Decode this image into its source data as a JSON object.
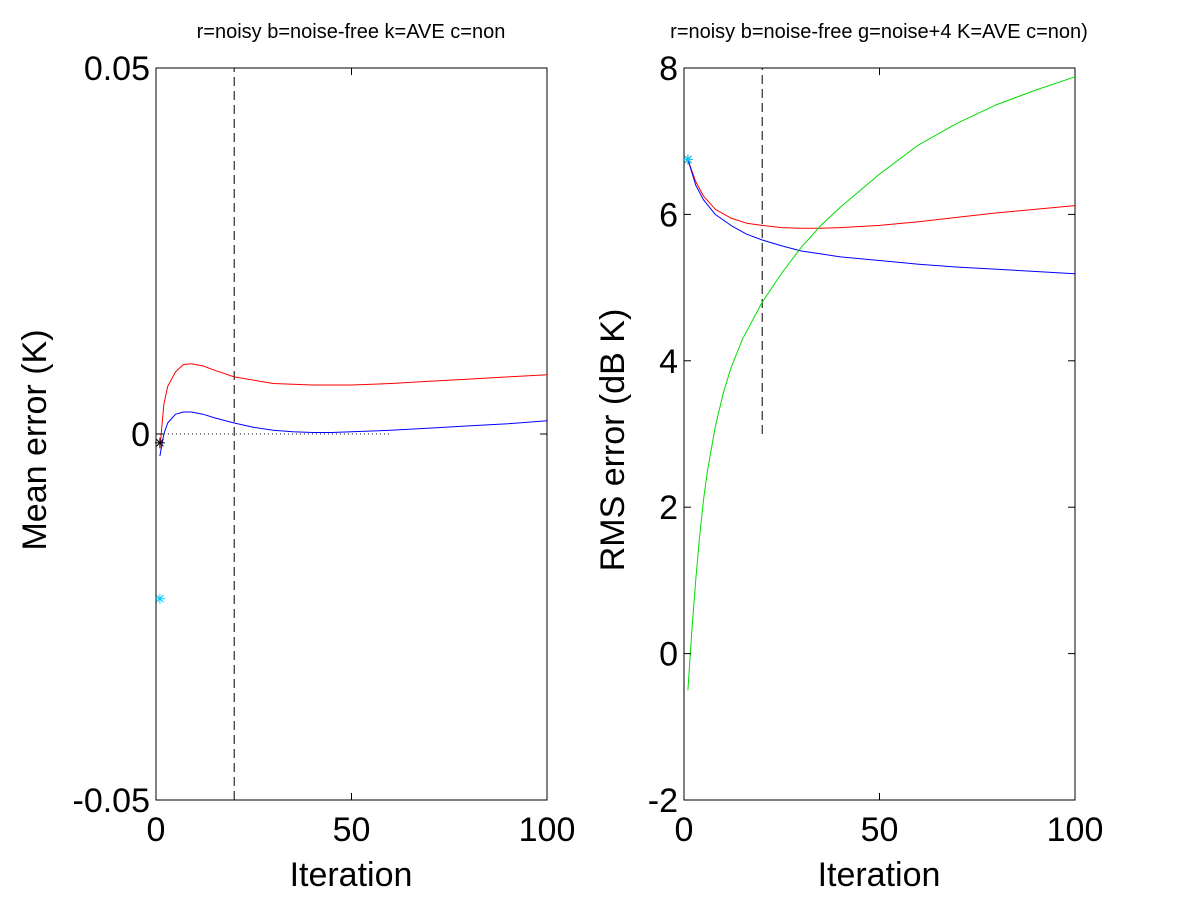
{
  "chart_data": [
    {
      "type": "line",
      "title": "r=noisy b=noise-free k=AVE c=non",
      "xlabel": "Iteration",
      "ylabel": "Mean error (K)",
      "xlim": [
        0,
        100
      ],
      "ylim": [
        -0.05,
        0.05
      ],
      "xticks": [
        0,
        50,
        100
      ],
      "xtick_labels": [
        "0",
        "50",
        "100"
      ],
      "yticks": [
        -0.05,
        0,
        0.05
      ],
      "ytick_labels": [
        "-0.05",
        "0",
        "0.05"
      ],
      "grid": false,
      "colors": {
        "noisy": "#ff0000",
        "noise_free": "#0000ff",
        "ave": "#000000",
        "non": "#00ccff"
      },
      "series": [
        {
          "key": "noisy",
          "style": "solid",
          "color": "#ff0000",
          "x": [
            1,
            2,
            3,
            5,
            7,
            9,
            12,
            15,
            20,
            30,
            40,
            50,
            60,
            70,
            80,
            90,
            100
          ],
          "y": [
            -0.002,
            0.004,
            0.0065,
            0.0085,
            0.0095,
            0.0096,
            0.0093,
            0.0087,
            0.0078,
            0.0069,
            0.0067,
            0.0067,
            0.0069,
            0.0072,
            0.0075,
            0.0078,
            0.0081
          ]
        },
        {
          "key": "noise_free",
          "style": "solid",
          "color": "#0000ff",
          "x": [
            1,
            2,
            3,
            5,
            7,
            9,
            12,
            15,
            20,
            25,
            30,
            35,
            40,
            45,
            50,
            60,
            70,
            80,
            90,
            100
          ],
          "y": [
            -0.003,
            0.0,
            0.0015,
            0.0027,
            0.003,
            0.003,
            0.0027,
            0.0022,
            0.0015,
            0.0009,
            0.0005,
            0.0003,
            0.0002,
            0.0002,
            0.0003,
            0.0005,
            0.0008,
            0.0011,
            0.0014,
            0.0018
          ]
        },
        {
          "key": "zero_ref",
          "style": "dotted",
          "color": "#000000",
          "x": [
            1,
            60
          ],
          "y": [
            0,
            0
          ]
        }
      ],
      "markers": [
        {
          "key": "ave",
          "color": "#000000",
          "symbol": "star",
          "x": 1,
          "y": -0.0012
        },
        {
          "key": "non",
          "color": "#00ccff",
          "symbol": "star",
          "x": 1,
          "y": -0.0225
        }
      ],
      "vlines": [
        {
          "x": 20,
          "y_from": -0.05,
          "y_to": 0.05,
          "style": "dashed",
          "color": "#000000"
        }
      ]
    },
    {
      "type": "line",
      "title": "r=noisy b=noise-free g=noise+4 K=AVE c=non)",
      "xlabel": "Iteration",
      "ylabel": "RMS error (dB K)",
      "xlim": [
        0,
        100
      ],
      "ylim": [
        -2,
        8
      ],
      "xticks": [
        0,
        50,
        100
      ],
      "xtick_labels": [
        "0",
        "50",
        "100"
      ],
      "yticks": [
        -2,
        0,
        2,
        4,
        6,
        8
      ],
      "ytick_labels": [
        "-2",
        "0",
        "2",
        "4",
        "6",
        "8"
      ],
      "grid": false,
      "colors": {
        "noisy": "#ff0000",
        "noise_free": "#0000ff",
        "noise_plus_4": "#00dd00",
        "ave": "#000000",
        "non": "#00ccff"
      },
      "series": [
        {
          "key": "noisy",
          "style": "solid",
          "color": "#ff0000",
          "x": [
            1,
            3,
            5,
            8,
            12,
            16,
            20,
            25,
            30,
            35,
            40,
            50,
            60,
            70,
            80,
            90,
            100
          ],
          "y": [
            6.75,
            6.45,
            6.25,
            6.07,
            5.95,
            5.88,
            5.85,
            5.82,
            5.81,
            5.81,
            5.82,
            5.85,
            5.9,
            5.96,
            6.02,
            6.07,
            6.12
          ]
        },
        {
          "key": "noise_free",
          "style": "solid",
          "color": "#0000ff",
          "x": [
            1,
            3,
            5,
            8,
            12,
            16,
            20,
            25,
            30,
            35,
            40,
            50,
            60,
            70,
            80,
            90,
            100
          ],
          "y": [
            6.75,
            6.4,
            6.2,
            6.0,
            5.85,
            5.73,
            5.65,
            5.57,
            5.5,
            5.46,
            5.42,
            5.37,
            5.32,
            5.28,
            5.25,
            5.22,
            5.19
          ]
        },
        {
          "key": "noise_plus_4",
          "style": "solid",
          "color": "#00dd00",
          "x": [
            1,
            2,
            3,
            4,
            5,
            6,
            8,
            10,
            12,
            15,
            18,
            20,
            25,
            30,
            35,
            40,
            50,
            60,
            70,
            80,
            90,
            100
          ],
          "y": [
            -0.5,
            0.3,
            1.0,
            1.6,
            2.1,
            2.5,
            3.1,
            3.55,
            3.9,
            4.3,
            4.6,
            4.8,
            5.2,
            5.55,
            5.85,
            6.1,
            6.55,
            6.95,
            7.25,
            7.5,
            7.7,
            7.88
          ]
        }
      ],
      "markers": [
        {
          "key": "ave",
          "color": "#000000",
          "symbol": "star",
          "x": 1,
          "y": 6.75
        },
        {
          "key": "non",
          "color": "#00ccff",
          "symbol": "star",
          "x": 1,
          "y": 6.75
        }
      ],
      "vlines": [
        {
          "x": 20,
          "y_from": 3.0,
          "y_to": 8,
          "style": "dashed",
          "color": "#000000"
        }
      ]
    }
  ]
}
